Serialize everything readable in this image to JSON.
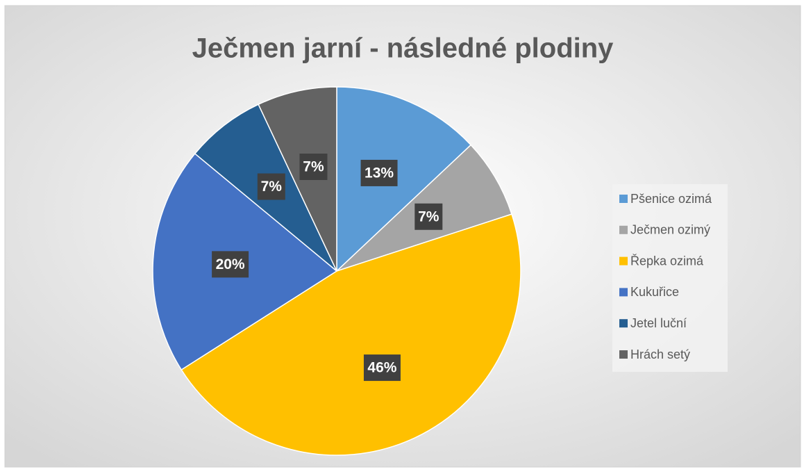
{
  "chart_data": {
    "type": "pie",
    "title": "Ječmen jarní - následné plodiny",
    "categories": [
      "Pšenice ozimá",
      "Ječmen ozimý",
      "Řepka ozimá",
      "Kukuřice",
      "Jetel luční",
      "Hrách setý"
    ],
    "values": [
      13,
      7,
      46,
      20,
      7,
      7
    ],
    "value_labels": [
      "13%",
      "7%",
      "46%",
      "20%",
      "7%",
      "7%"
    ],
    "colors": [
      "#5b9bd5",
      "#a5a5a5",
      "#ffc000",
      "#4472c4",
      "#255e91",
      "#636363"
    ],
    "legend": "right"
  }
}
